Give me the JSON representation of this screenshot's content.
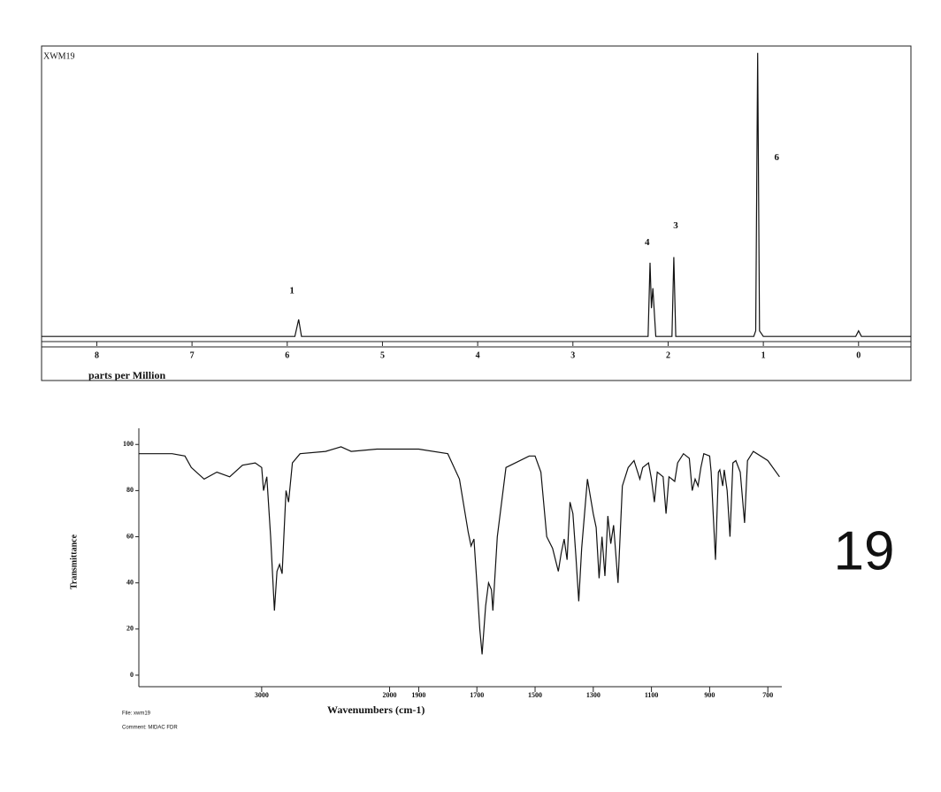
{
  "chart_data": [
    {
      "type": "line",
      "title": "XWM19",
      "x_label": "parts per Million",
      "reverse_x": true,
      "color": "#111111",
      "xlim": [
        8.58,
        -0.55
      ],
      "ylim": [
        -1.5,
        101.5
      ],
      "xticks": [
        8,
        7,
        6,
        5,
        4,
        3,
        2,
        1,
        0
      ],
      "x": [
        8.58,
        6.0,
        5.92,
        5.88,
        5.85,
        5.8,
        2.25,
        2.21,
        2.19,
        2.175,
        2.16,
        2.13,
        2.0,
        1.96,
        1.94,
        1.92,
        1.1,
        1.08,
        1.06,
        1.04,
        1.0,
        0.03,
        0.0,
        -0.03,
        -0.55
      ],
      "values": [
        0,
        0,
        0,
        6,
        0,
        0,
        0,
        0,
        26,
        10,
        17,
        0,
        0,
        0,
        28,
        0,
        0,
        2,
        100,
        2,
        0,
        0,
        2,
        0,
        0
      ],
      "annotations": [
        {
          "text": "1",
          "x": 5.95,
          "y": 16
        },
        {
          "text": "4",
          "x": 2.22,
          "y": 33
        },
        {
          "text": "3",
          "x": 1.92,
          "y": 39
        },
        {
          "text": "6",
          "x": 0.86,
          "y": 63
        }
      ]
    },
    {
      "type": "line",
      "x_label": "Wavenumbers (cm-1)",
      "y_label": "Transmittance",
      "reverse_x": true,
      "x_break": 2000,
      "color": "#111111",
      "xlim": [
        3960,
        652
      ],
      "ylim": [
        -5,
        107
      ],
      "yticks": [
        0,
        20,
        40,
        60,
        80,
        100
      ],
      "xticks": [
        3000,
        2000,
        1900,
        1700,
        1500,
        1300,
        1100,
        900,
        700
      ],
      "x": [
        3960,
        3700,
        3600,
        3550,
        3450,
        3350,
        3250,
        3150,
        3050,
        3000,
        2985,
        2960,
        2930,
        2900,
        2880,
        2860,
        2840,
        2810,
        2790,
        2760,
        2700,
        2500,
        2380,
        2300,
        2100,
        2000,
        1900,
        1800,
        1760,
        1730,
        1720,
        1710,
        1700,
        1690,
        1682,
        1670,
        1660,
        1650,
        1645,
        1630,
        1600,
        1520,
        1500,
        1480,
        1460,
        1440,
        1420,
        1410,
        1400,
        1390,
        1380,
        1370,
        1360,
        1350,
        1340,
        1320,
        1300,
        1290,
        1280,
        1270,
        1260,
        1250,
        1240,
        1230,
        1215,
        1200,
        1180,
        1160,
        1140,
        1130,
        1110,
        1100,
        1090,
        1080,
        1060,
        1050,
        1040,
        1020,
        1010,
        990,
        970,
        960,
        950,
        940,
        930,
        920,
        900,
        895,
        880,
        870,
        865,
        855,
        850,
        840,
        830,
        820,
        810,
        795,
        780,
        770,
        750,
        700,
        660
      ],
      "values": [
        96,
        96,
        95,
        90,
        85,
        88,
        86,
        91,
        92,
        90,
        80,
        86,
        60,
        28,
        45,
        48,
        44,
        80,
        75,
        92,
        96,
        97,
        99,
        97,
        98,
        98,
        98,
        96,
        85,
        62,
        56,
        59,
        40,
        20,
        9,
        30,
        40,
        37,
        28,
        60,
        90,
        95,
        95,
        88,
        60,
        55,
        45,
        53,
        59,
        50,
        75,
        70,
        52,
        32,
        55,
        85,
        70,
        64,
        42,
        60,
        43,
        69,
        57,
        65,
        40,
        82,
        90,
        93,
        85,
        90,
        92,
        85,
        75,
        88,
        86,
        70,
        86,
        84,
        92,
        96,
        94,
        80,
        85,
        82,
        90,
        96,
        95,
        88,
        50,
        88,
        89,
        82,
        89,
        80,
        60,
        92,
        93,
        88,
        66,
        93,
        97,
        93,
        86
      ],
      "footer": [
        "File: xwm19",
        "Comment: MIDAC FDR"
      ]
    }
  ],
  "page": {
    "label": "19"
  }
}
